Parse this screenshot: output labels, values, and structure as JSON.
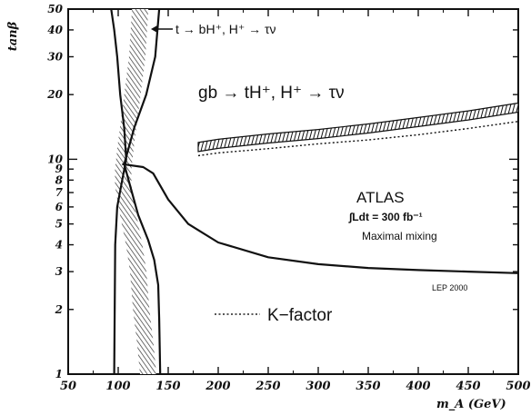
{
  "chart_data": {
    "type": "line",
    "xlabel": "m_A (GeV)",
    "ylabel": "tanβ",
    "xlim": [
      50,
      500
    ],
    "ylim": [
      1,
      50
    ],
    "yscale": "log",
    "x_ticks": [
      "50",
      "100",
      "150",
      "200",
      "250",
      "300",
      "350",
      "400",
      "450",
      "500"
    ],
    "y_ticks": [
      {
        "value": 1,
        "label": "1"
      },
      {
        "value": 2,
        "label": "2"
      },
      {
        "value": 3,
        "label": "3"
      },
      {
        "value": 4,
        "label": "4"
      },
      {
        "value": 5,
        "label": "5"
      },
      {
        "value": 6,
        "label": "6"
      },
      {
        "value": 7,
        "label": "7"
      },
      {
        "value": 8,
        "label": "8"
      },
      {
        "value": 9,
        "label": "9"
      },
      {
        "value": 10,
        "label": "10"
      },
      {
        "value": 20,
        "label": "20"
      },
      {
        "value": 30,
        "label": "30"
      },
      {
        "value": 40,
        "label": "40"
      },
      {
        "value": 50,
        "label": "50"
      }
    ],
    "series": [
      {
        "name": "t → bH⁺, H⁺ → τν",
        "style": "hatched-band",
        "x": [
          122,
          119,
          113,
          108,
          105,
          105,
          110,
          116,
          120,
          123,
          127,
          130
        ],
        "y": [
          50,
          30,
          18,
          12,
          9,
          7.5,
          5.5,
          4,
          3,
          2,
          1.4,
          1
        ]
      },
      {
        "name": "",
        "style": "solid",
        "x": [
          93,
          96,
          99,
          102,
          106,
          108,
          104,
          99,
          97,
          96
        ],
        "y": [
          50,
          40,
          30,
          20,
          14,
          10,
          8,
          6,
          4,
          1
        ]
      },
      {
        "name": "",
        "style": "solid",
        "x": [
          141,
          137,
          128,
          116,
          106,
          112,
          120,
          130,
          136,
          140,
          141,
          142
        ],
        "y": [
          50,
          30,
          20,
          14,
          9.5,
          7.5,
          5.5,
          4.2,
          3.4,
          2.6,
          1.8,
          1
        ]
      },
      {
        "name": "LEP 2000",
        "style": "solid",
        "x": [
          104,
          125,
          135,
          150,
          170,
          200,
          250,
          300,
          350,
          400,
          450,
          500
        ],
        "y": [
          9.5,
          9.2,
          8.6,
          6.5,
          5.0,
          4.1,
          3.5,
          3.25,
          3.12,
          3.05,
          3.0,
          2.95
        ]
      },
      {
        "name": "gb → tH⁺, H⁺ → τν",
        "style": "hatched-band",
        "x": [
          180,
          200,
          250,
          300,
          350,
          400,
          450,
          500
        ],
        "y": [
          11.4,
          11.8,
          12.5,
          13.1,
          13.9,
          14.9,
          16.0,
          17.4
        ]
      },
      {
        "name": "K-factor",
        "style": "dotted",
        "x": [
          180,
          200,
          250,
          300,
          350,
          400,
          450,
          500
        ],
        "y": [
          10.4,
          10.7,
          11.2,
          11.8,
          12.3,
          13.0,
          13.9,
          15.0
        ]
      }
    ],
    "annotations": {
      "top_channel": "t → bH⁺, H⁺ → τν",
      "gb_channel": "gb → tH⁺, H⁺ → τν",
      "experiment": "ATLAS",
      "luminosity": "∫Ldt = 300 fb⁻¹",
      "scenario": "Maximal mixing",
      "lep": "LEP 2000",
      "kfactor": "K−factor"
    }
  }
}
